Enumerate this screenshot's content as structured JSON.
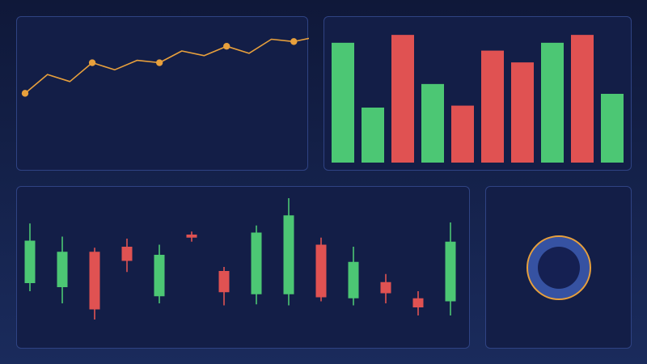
{
  "colors": {
    "line": "#e8a03c",
    "bull": "#4cc774",
    "bear": "#e05252",
    "ring_fill": "#3652a2",
    "ring_hole": "#152052",
    "ring_stroke": "#e8a03c"
  },
  "chart_data": [
    {
      "type": "line",
      "x": [
        0,
        1,
        2,
        3,
        4,
        5,
        6,
        7,
        8,
        9,
        10,
        11,
        12,
        13
      ],
      "values": [
        26,
        34,
        31,
        39,
        36,
        40,
        39,
        44,
        42,
        46,
        43,
        49,
        48,
        50
      ],
      "markers_at": [
        0,
        3,
        6,
        9,
        12
      ],
      "ylim": [
        0,
        55
      ],
      "grid": false
    },
    {
      "type": "bar",
      "values": [
        61,
        28,
        65,
        40,
        29,
        57,
        51,
        61,
        65,
        35
      ],
      "directions": [
        "up",
        "up",
        "down",
        "up",
        "down",
        "down",
        "down",
        "up",
        "down",
        "up"
      ],
      "ylim": [
        0,
        70
      ],
      "grid": false
    },
    {
      "type": "candlestick",
      "candles": [
        {
          "open": 36,
          "close": 78,
          "high": 95,
          "low": 28
        },
        {
          "open": 32,
          "close": 67,
          "high": 82,
          "low": 16
        },
        {
          "open": 67,
          "close": 10,
          "high": 71,
          "low": 0
        },
        {
          "open": 72,
          "close": 58,
          "high": 80,
          "low": 47
        },
        {
          "open": 23,
          "close": 64,
          "high": 74,
          "low": 16
        },
        {
          "open": 84,
          "close": 81,
          "high": 87,
          "low": 77
        },
        {
          "open": 48,
          "close": 27,
          "high": 52,
          "low": 14
        },
        {
          "open": 25,
          "close": 86,
          "high": 93,
          "low": 15
        },
        {
          "open": 25,
          "close": 103,
          "high": 120,
          "low": 14
        },
        {
          "open": 74,
          "close": 22,
          "high": 81,
          "low": 18
        },
        {
          "open": 21,
          "close": 57,
          "high": 72,
          "low": 14
        },
        {
          "open": 37,
          "close": 26,
          "high": 45,
          "low": 16
        },
        {
          "open": 21,
          "close": 12,
          "high": 28,
          "low": 4
        },
        {
          "open": 18,
          "close": 77,
          "high": 96,
          "low": 4
        }
      ],
      "ylim": [
        0,
        120
      ],
      "grid": false
    },
    {
      "type": "ring",
      "value": 1
    }
  ]
}
